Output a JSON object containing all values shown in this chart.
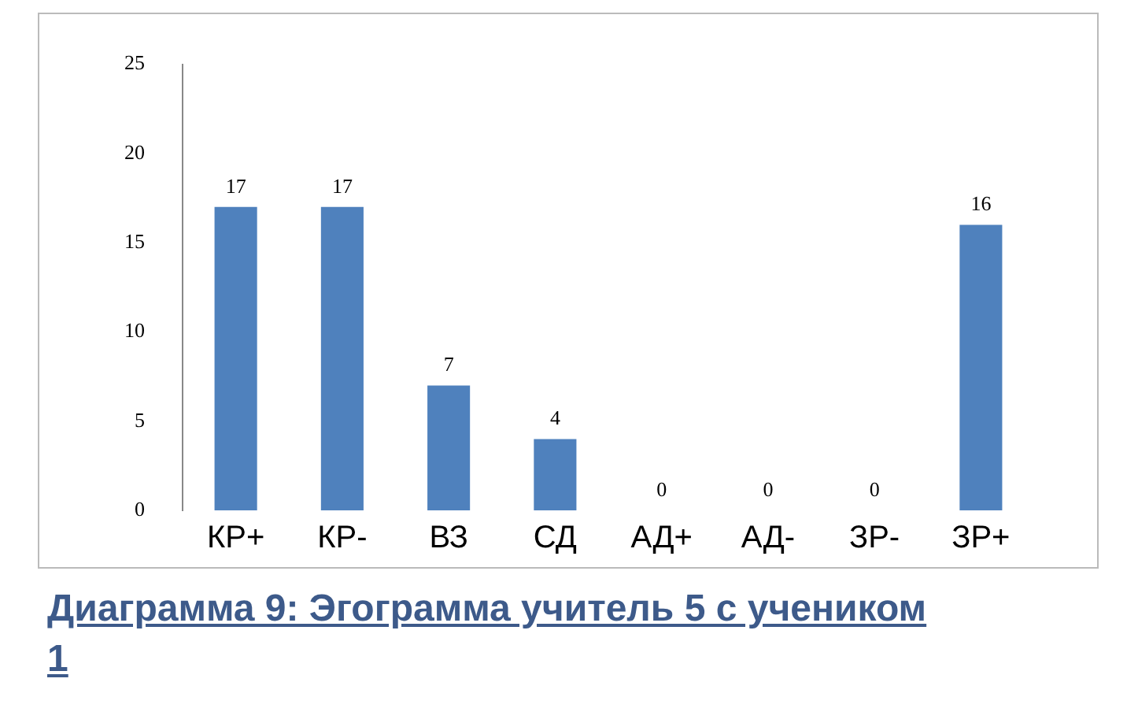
{
  "chart_data": {
    "type": "bar",
    "categories": [
      "КР+",
      "КР-",
      "ВЗ",
      "СД",
      "АД+",
      "АД-",
      "ЗР-",
      "ЗР+"
    ],
    "values": [
      17,
      17,
      7,
      4,
      0,
      0,
      0,
      16
    ],
    "color": "#4f81bd",
    "ylim": [
      0,
      25
    ],
    "yticks": [
      0,
      5,
      10,
      15,
      20,
      25
    ],
    "data_labels": true,
    "grid": false,
    "legend": false,
    "annotations": [
      "Диаграмма 9: Эгограмма учитель 5 с учеником 1"
    ]
  }
}
